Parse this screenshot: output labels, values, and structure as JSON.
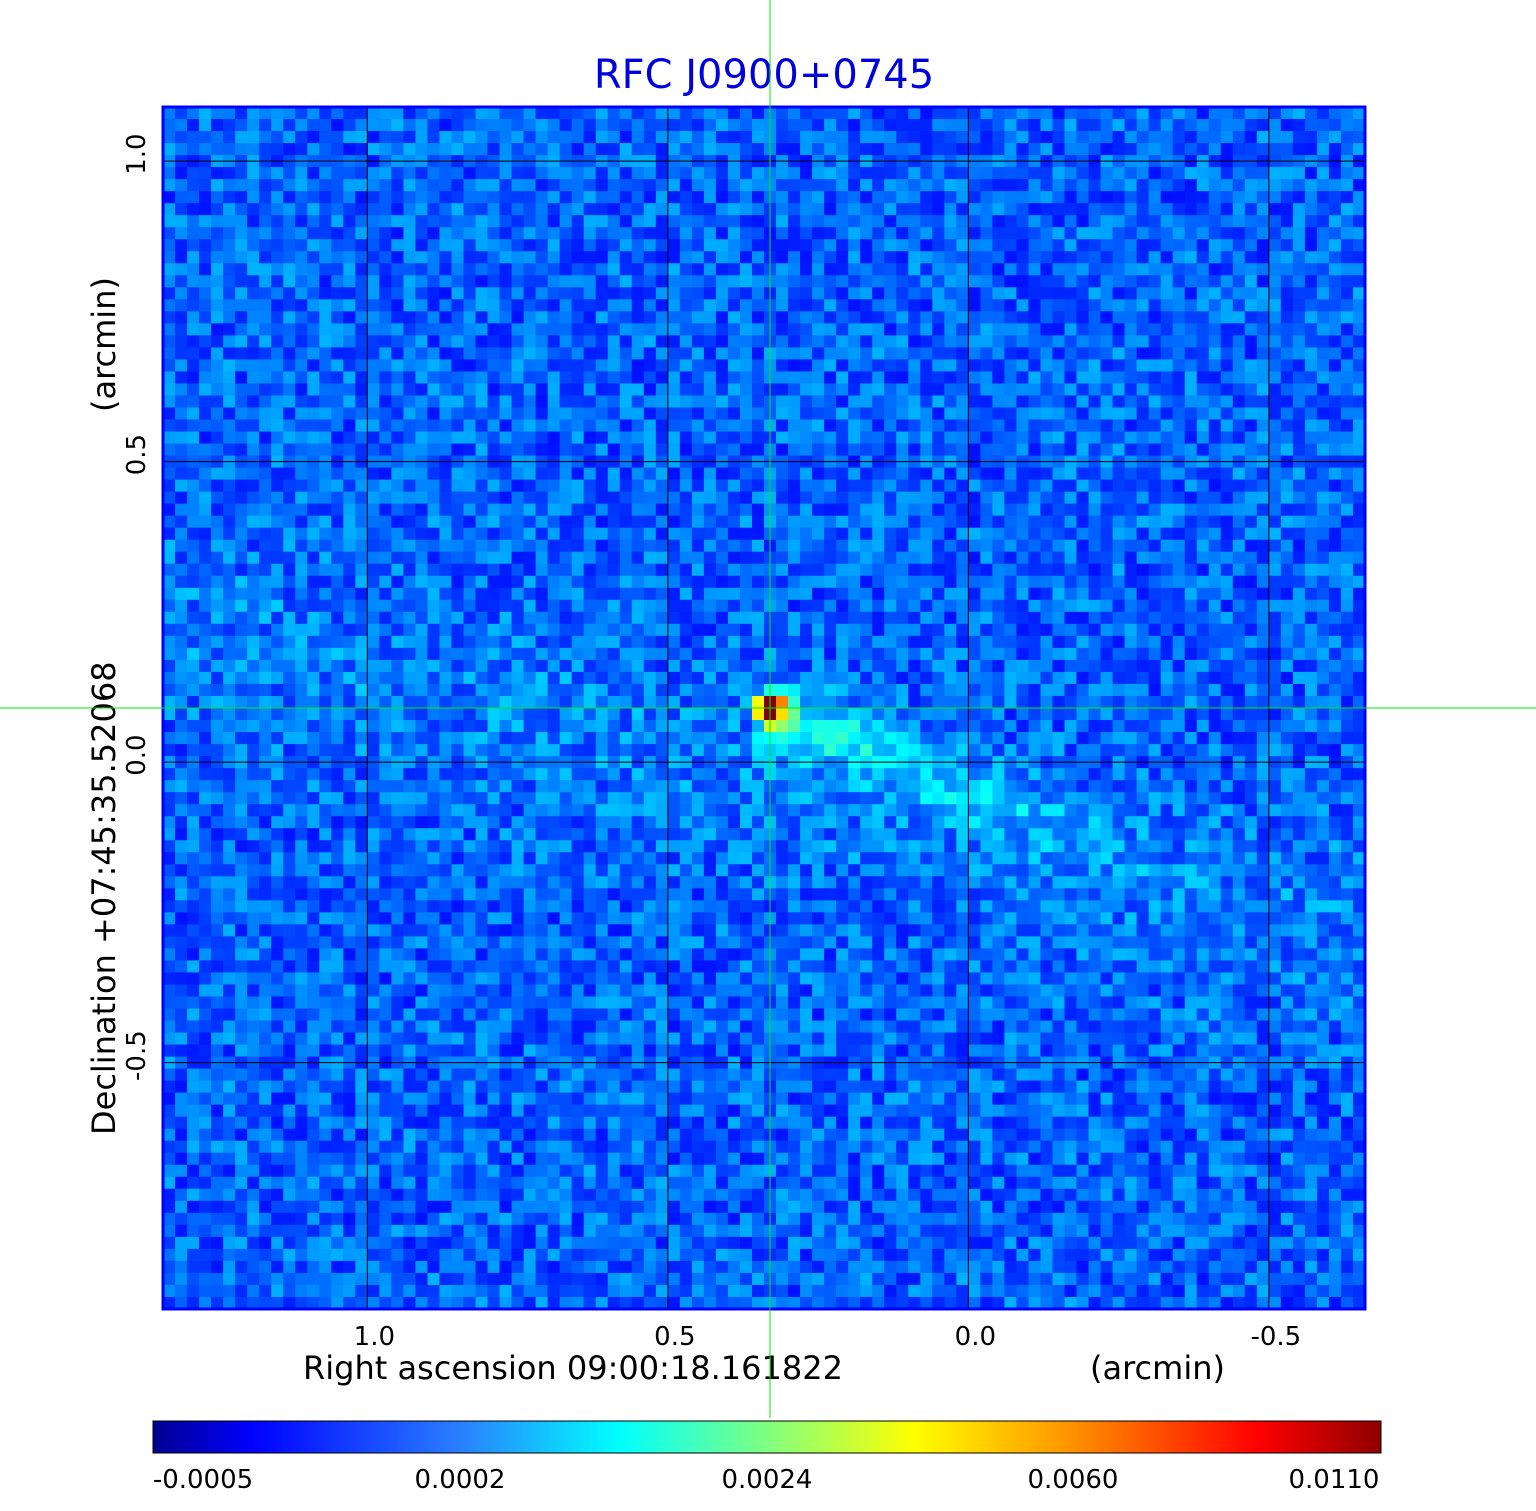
{
  "chart_data": {
    "type": "heatmap",
    "title": "RFC J0900+0745",
    "title_color": "#0000dd",
    "xlabel": "Right ascension  09:00:18.161822",
    "xunit": "(arcmin)",
    "ylabel": "Declination  +07:45:35.52068",
    "yunit": "(arcmin)",
    "x_axis_reversed": true,
    "xlim": [
      1.34,
      -0.66
    ],
    "ylim": [
      -0.91,
      1.09
    ],
    "x_ticks": [
      1.0,
      0.5,
      0.0,
      -0.5
    ],
    "x_tick_labels": [
      "1.0",
      "0.5",
      "0.0",
      "-0.5"
    ],
    "y_ticks": [
      1.0,
      0.5,
      0.0,
      -0.5
    ],
    "y_tick_labels": [
      "1.0",
      "0.5",
      "0.0",
      "-0.5"
    ],
    "grid": true,
    "grid_color": "#000000",
    "crosshair_color": "#00ee00",
    "crosshair_x": 0.33,
    "crosshair_y": 0.09,
    "peak": {
      "x": 0.33,
      "y": 0.09,
      "value": 0.011
    },
    "jet_direction": "towards lower right (west-southwest)",
    "colormap": "jet",
    "colorbar_tick_labels": [
      "-0.0005",
      "0.0002",
      "0.0024",
      "0.0060",
      "0.0110"
    ],
    "colorbar_ticks": [
      -0.0005,
      0.0002,
      0.0024,
      0.006,
      0.011
    ],
    "colorbar_scale": "nonlinear",
    "colorbar_placement": "bottom"
  }
}
